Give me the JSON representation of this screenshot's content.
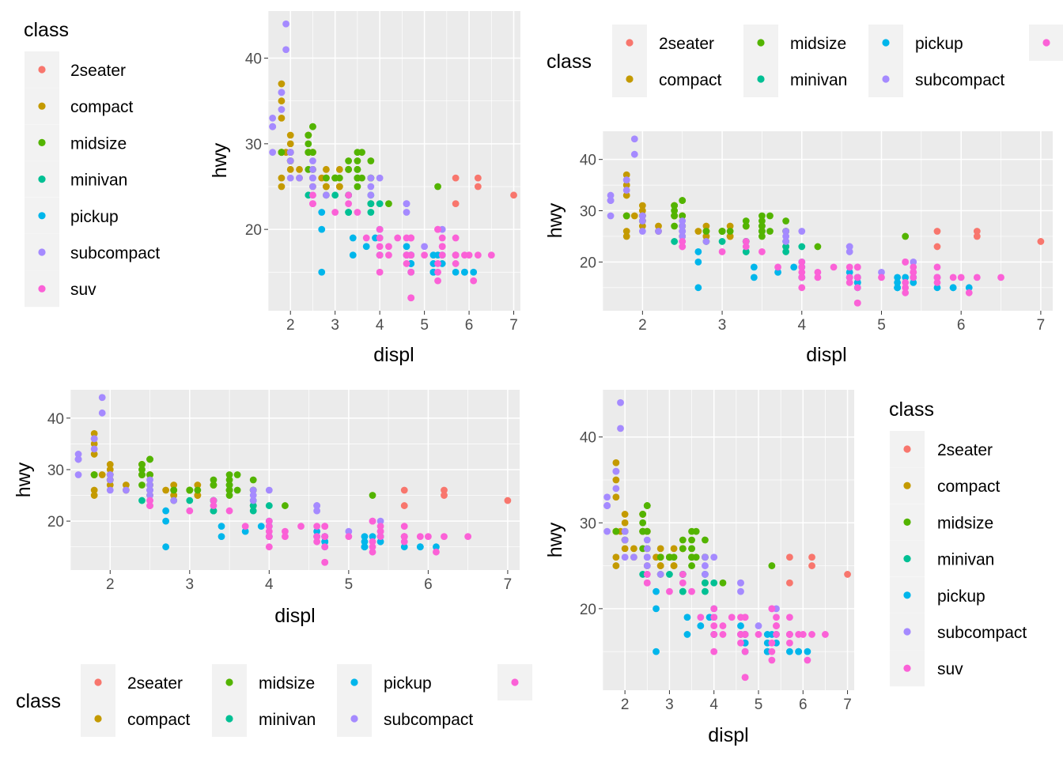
{
  "chart_data": [
    {
      "type": "scatter",
      "xlabel": "displ",
      "ylabel": "hwy",
      "xlim": [
        1.5,
        7.15
      ],
      "ylim": [
        10.5,
        45.5
      ],
      "xticks": [
        2,
        3,
        4,
        5,
        6,
        7
      ],
      "yticks": [
        20,
        30,
        40
      ],
      "legend": {
        "position": "left",
        "title": "class"
      }
    },
    {
      "type": "scatter",
      "xlabel": "displ",
      "ylabel": "hwy",
      "xlim": [
        1.5,
        7.15
      ],
      "ylim": [
        10.5,
        45.5
      ],
      "xticks": [
        2,
        3,
        4,
        5,
        6,
        7
      ],
      "yticks": [
        20,
        30,
        40
      ],
      "legend": {
        "position": "top",
        "title": "class"
      }
    },
    {
      "type": "scatter",
      "xlabel": "displ",
      "ylabel": "hwy",
      "xlim": [
        1.5,
        7.15
      ],
      "ylim": [
        10.5,
        45.5
      ],
      "xticks": [
        2,
        3,
        4,
        5,
        6,
        7
      ],
      "yticks": [
        20,
        30,
        40
      ],
      "legend": {
        "position": "bottom",
        "title": "class"
      }
    },
    {
      "type": "scatter",
      "xlabel": "displ",
      "ylabel": "hwy",
      "xlim": [
        1.5,
        7.15
      ],
      "ylim": [
        10.5,
        45.5
      ],
      "xticks": [
        2,
        3,
        4,
        5,
        6,
        7
      ],
      "yticks": [
        20,
        30,
        40
      ],
      "legend": {
        "position": "right",
        "title": "class"
      }
    }
  ],
  "classes": [
    {
      "name": "2seater",
      "color": "#F8766D"
    },
    {
      "name": "compact",
      "color": "#C49A00"
    },
    {
      "name": "midsize",
      "color": "#53B400"
    },
    {
      "name": "minivan",
      "color": "#00C094"
    },
    {
      "name": "pickup",
      "color": "#00B6EB"
    },
    {
      "name": "subcompact",
      "color": "#A58AFF"
    },
    {
      "name": "suv",
      "color": "#FB61D7"
    }
  ],
  "points": {
    "2seater": [
      [
        5.7,
        26
      ],
      [
        5.7,
        23
      ],
      [
        6.2,
        26
      ],
      [
        6.2,
        25
      ],
      [
        7.0,
        24
      ]
    ],
    "compact": [
      [
        1.8,
        29
      ],
      [
        1.8,
        29
      ],
      [
        2.0,
        31
      ],
      [
        2.0,
        30
      ],
      [
        2.8,
        26
      ],
      [
        2.8,
        26
      ],
      [
        3.1,
        27
      ],
      [
        1.8,
        26
      ],
      [
        1.8,
        25
      ],
      [
        2.0,
        28
      ],
      [
        2.0,
        27
      ],
      [
        2.8,
        25
      ],
      [
        2.8,
        25
      ],
      [
        3.1,
        25
      ],
      [
        3.1,
        25
      ],
      [
        2.2,
        27
      ],
      [
        2.2,
        26
      ],
      [
        2.4,
        31
      ],
      [
        2.4,
        31
      ],
      [
        3.0,
        26
      ],
      [
        3.0,
        26
      ],
      [
        3.3,
        27
      ],
      [
        1.8,
        37
      ],
      [
        1.8,
        35
      ],
      [
        1.8,
        29
      ],
      [
        1.8,
        29
      ],
      [
        1.8,
        33
      ],
      [
        1.9,
        29
      ],
      [
        2.0,
        29
      ],
      [
        2.0,
        28
      ],
      [
        2.0,
        29
      ],
      [
        2.5,
        29
      ],
      [
        2.5,
        29
      ],
      [
        2.7,
        26
      ],
      [
        3.3,
        27
      ],
      [
        2.4,
        29
      ],
      [
        2.5,
        25
      ],
      [
        2.5,
        27
      ],
      [
        2.8,
        27
      ]
    ],
    "midsize": [
      [
        2.4,
        29
      ],
      [
        2.4,
        29
      ],
      [
        3.1,
        26
      ],
      [
        3.5,
        26
      ],
      [
        3.6,
        29
      ],
      [
        2.4,
        27
      ],
      [
        2.4,
        30
      ],
      [
        2.5,
        32
      ],
      [
        2.5,
        32
      ],
      [
        3.5,
        27
      ],
      [
        3.5,
        27
      ],
      [
        3.3,
        28
      ],
      [
        3.8,
        28
      ],
      [
        3.8,
        26
      ],
      [
        4.2,
        23
      ],
      [
        3.5,
        26
      ],
      [
        3.5,
        29
      ],
      [
        3.0,
        26
      ],
      [
        3.0,
        26
      ],
      [
        3.3,
        27
      ],
      [
        3.5,
        25
      ],
      [
        3.8,
        26
      ],
      [
        2.5,
        29
      ],
      [
        2.5,
        27
      ],
      [
        3.0,
        26
      ],
      [
        3.5,
        28
      ],
      [
        5.3,
        25
      ],
      [
        1.8,
        29
      ],
      [
        2.8,
        24
      ],
      [
        2.4,
        31
      ],
      [
        3.5,
        26
      ],
      [
        3.8,
        23
      ],
      [
        2.0,
        29
      ],
      [
        2.0,
        28
      ],
      [
        2.8,
        26
      ],
      [
        3.6,
        26
      ]
    ],
    "minivan": [
      [
        2.4,
        24
      ],
      [
        3.0,
        24
      ],
      [
        3.3,
        22
      ],
      [
        3.3,
        24
      ],
      [
        3.3,
        24
      ],
      [
        3.3,
        22
      ],
      [
        3.8,
        22
      ],
      [
        3.8,
        24
      ],
      [
        3.8,
        23
      ],
      [
        4.0,
        23
      ],
      [
        3.3,
        24
      ]
    ],
    "pickup": [
      [
        2.7,
        20
      ],
      [
        2.7,
        15
      ],
      [
        3.4,
        17
      ],
      [
        3.4,
        19
      ],
      [
        4.0,
        20
      ],
      [
        4.0,
        17
      ],
      [
        4.7,
        17
      ],
      [
        4.7,
        15
      ],
      [
        4.7,
        17
      ],
      [
        5.2,
        15
      ],
      [
        5.2,
        15
      ],
      [
        5.7,
        17
      ],
      [
        5.9,
        15
      ],
      [
        4.7,
        16
      ],
      [
        4.7,
        16
      ],
      [
        4.7,
        17
      ],
      [
        5.2,
        17
      ],
      [
        5.2,
        16
      ],
      [
        5.7,
        15
      ],
      [
        5.9,
        15
      ],
      [
        4.6,
        17
      ],
      [
        5.4,
        16
      ],
      [
        5.4,
        17
      ],
      [
        2.7,
        22
      ],
      [
        3.7,
        18
      ],
      [
        3.9,
        19
      ],
      [
        4.0,
        19
      ],
      [
        4.7,
        16
      ],
      [
        5.2,
        15
      ],
      [
        6.1,
        15
      ],
      [
        4.0,
        17
      ],
      [
        5.3,
        17
      ],
      [
        4.6,
        18
      ]
    ],
    "subcompact": [
      [
        1.6,
        33
      ],
      [
        1.6,
        32
      ],
      [
        1.6,
        32
      ],
      [
        1.6,
        29
      ],
      [
        1.6,
        32
      ],
      [
        1.8,
        34
      ],
      [
        1.8,
        36
      ],
      [
        1.8,
        36
      ],
      [
        2.0,
        29
      ],
      [
        1.9,
        44
      ],
      [
        1.9,
        41
      ],
      [
        2.0,
        28
      ],
      [
        2.0,
        29
      ],
      [
        2.0,
        26
      ],
      [
        2.5,
        27
      ],
      [
        2.5,
        26
      ],
      [
        2.5,
        24
      ],
      [
        2.5,
        28
      ],
      [
        2.5,
        26
      ],
      [
        3.8,
        26
      ],
      [
        3.8,
        24
      ],
      [
        4.0,
        26
      ],
      [
        4.6,
        23
      ],
      [
        4.6,
        23
      ],
      [
        4.6,
        22
      ],
      [
        5.4,
        20
      ],
      [
        5.0,
        18
      ],
      [
        2.2,
        26
      ],
      [
        2.5,
        25
      ],
      [
        2.5,
        26
      ],
      [
        2.8,
        24
      ],
      [
        3.8,
        25
      ]
    ],
    "suv": [
      [
        5.3,
        20
      ],
      [
        5.3,
        15
      ],
      [
        5.3,
        20
      ],
      [
        5.7,
        17
      ],
      [
        6.0,
        17
      ],
      [
        5.7,
        17
      ],
      [
        6.5,
        17
      ],
      [
        3.7,
        19
      ],
      [
        4.7,
        19
      ],
      [
        4.7,
        17
      ],
      [
        5.7,
        19
      ],
      [
        6.1,
        14
      ],
      [
        4.0,
        17
      ],
      [
        4.0,
        19
      ],
      [
        4.2,
        18
      ],
      [
        4.6,
        19
      ],
      [
        4.6,
        17
      ],
      [
        5.4,
        17
      ],
      [
        5.4,
        18
      ],
      [
        4.2,
        17
      ],
      [
        4.0,
        20
      ],
      [
        4.7,
        19
      ],
      [
        5.7,
        17
      ],
      [
        2.5,
        23
      ],
      [
        3.3,
        24
      ],
      [
        3.3,
        23
      ],
      [
        4.0,
        18
      ],
      [
        4.6,
        17
      ],
      [
        5.4,
        19
      ],
      [
        2.5,
        24
      ],
      [
        2.5,
        23
      ],
      [
        3.0,
        22
      ],
      [
        4.7,
        12
      ],
      [
        4.7,
        12
      ],
      [
        4.7,
        15
      ],
      [
        5.3,
        14
      ],
      [
        5.9,
        17
      ],
      [
        4.7,
        17
      ],
      [
        4.4,
        19
      ],
      [
        5.4,
        18
      ],
      [
        4.0,
        17
      ],
      [
        4.0,
        15
      ],
      [
        4.6,
        16
      ],
      [
        5.0,
        17
      ],
      [
        5.7,
        16
      ],
      [
        5.3,
        16
      ],
      [
        3.5,
        22
      ],
      [
        6.2,
        17
      ]
    ]
  }
}
